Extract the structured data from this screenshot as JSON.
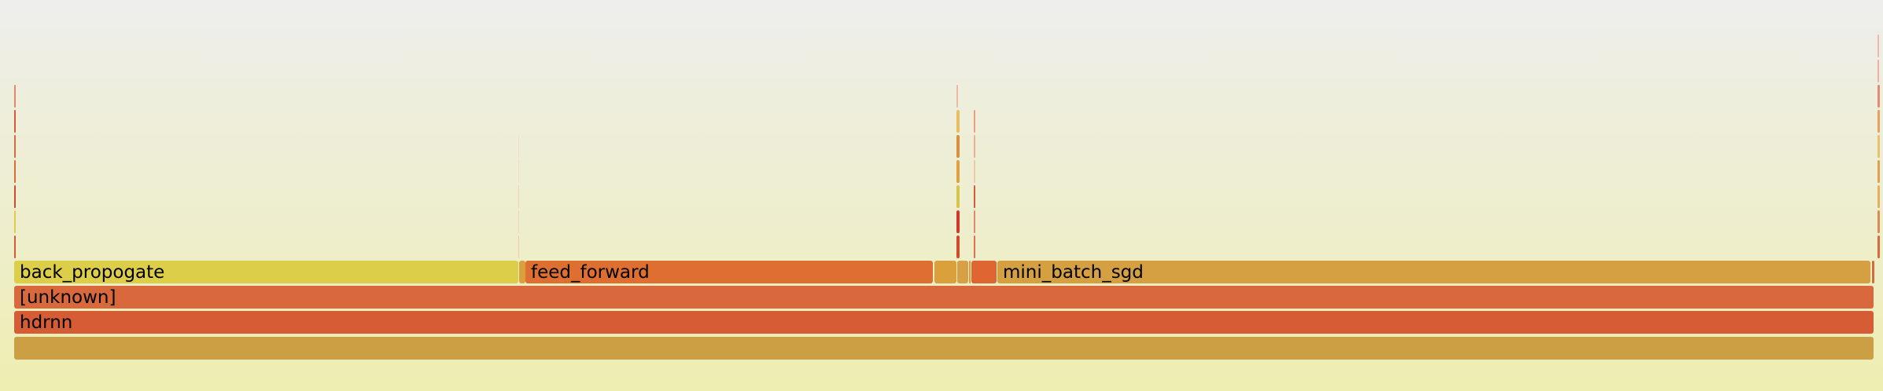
{
  "flamegraph": {
    "frames": [
      {
        "id": "root",
        "label": "",
        "color": "#cc9f45"
      },
      {
        "id": "hdrnn",
        "label": "hdrnn",
        "color": "#d65c36"
      },
      {
        "id": "unknown",
        "label": "[unknown]",
        "color": "#d9693c"
      },
      {
        "id": "back-propogate",
        "label": "back_propogate",
        "color": "#dcce49"
      },
      {
        "id": "feed-forward",
        "label": "feed_forward",
        "color": "#df6f30"
      },
      {
        "id": "mini-batch-sgd",
        "label": "mini_batch_sgd",
        "color": "#d5a042"
      },
      {
        "id": "small-a",
        "label": "",
        "color": "#d9a03c"
      },
      {
        "id": "small-b",
        "label": "",
        "color": "#d8a046"
      },
      {
        "id": "small-c",
        "label": "",
        "color": "#cf9f40"
      },
      {
        "id": "small-d",
        "label": "",
        "color": "#df6532"
      }
    ]
  }
}
